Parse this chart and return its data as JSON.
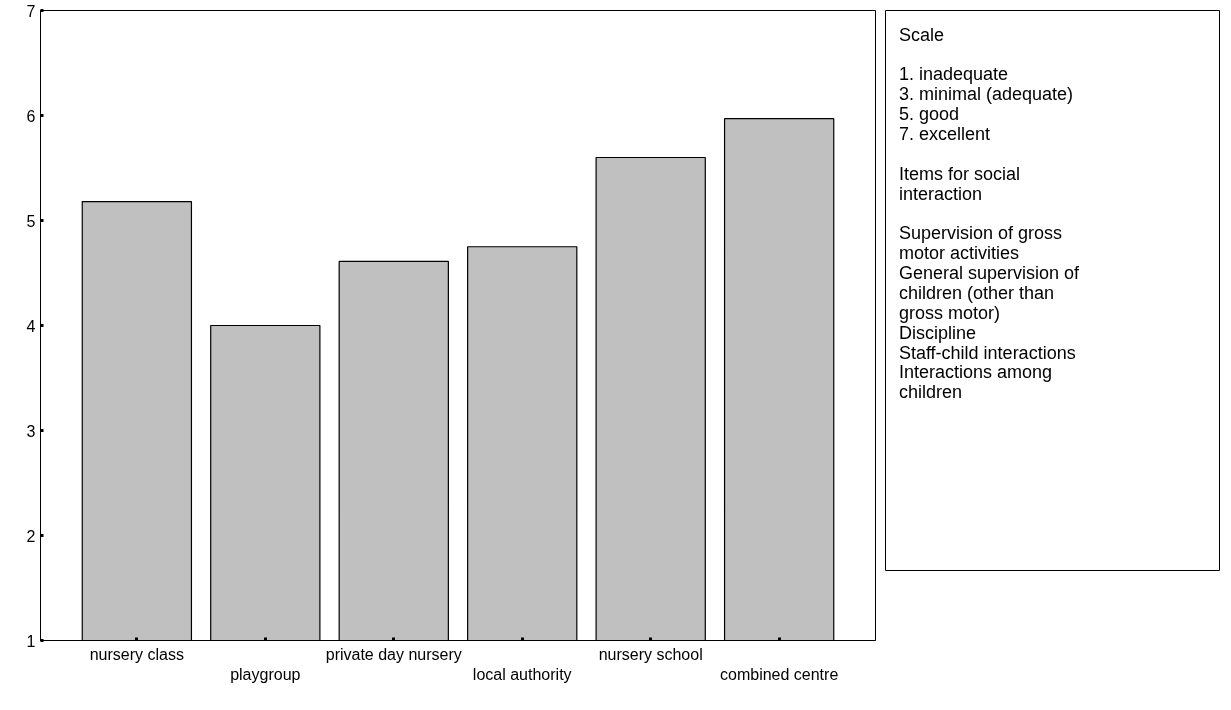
{
  "chart_data": {
    "type": "bar",
    "categories": [
      "nursery class",
      "playgroup",
      "private day nursery",
      "local authority",
      "nursery school",
      "combined centre"
    ],
    "values": [
      5.18,
      4.0,
      4.61,
      4.75,
      5.6,
      5.97
    ],
    "color": "#c0c0c0",
    "ylim": [
      1,
      7
    ],
    "yticks": [
      1,
      2,
      3,
      4,
      5,
      6,
      7
    ],
    "grid": false,
    "annotations": [
      "Scale",
      "1.  inadequate",
      "3.  minimal (adequate)",
      "5.  good",
      "7.  excellent",
      "Items for social interaction",
      "Supervision of gross motor activities",
      "General supervision of children (other than gross motor)",
      "Discipline",
      "Staff-child interactions",
      "Interactions among children"
    ]
  }
}
